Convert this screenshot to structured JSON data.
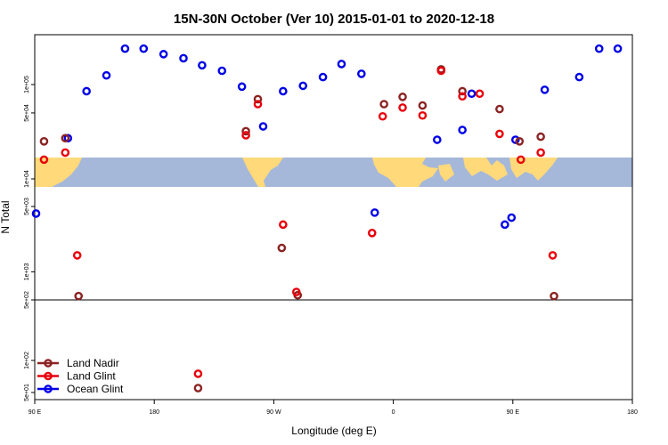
{
  "chart_data": {
    "type": "scatter",
    "title": "15N-30N October (Ver 10)   2015-01-01 to 2020-12-18",
    "xlabel": "Longitude (deg E)",
    "ylabel": "N Total",
    "xlim": [
      90,
      540
    ],
    "x_ticks": [
      {
        "value": 90,
        "label": "90 E"
      },
      {
        "value": 180,
        "label": "180"
      },
      {
        "value": 270,
        "label": "90 W"
      },
      {
        "value": 360,
        "label": "0"
      },
      {
        "value": 450,
        "label": "90 E"
      },
      {
        "value": 540,
        "label": "180"
      }
    ],
    "y_ticks_upper": [
      {
        "value": 100000,
        "label": "1e+05"
      },
      {
        "value": 50000,
        "label": "5e+04"
      },
      {
        "value": 10000,
        "label": "1e+04"
      }
    ],
    "y_ticks_middle": [
      {
        "value": 5000,
        "label": "5e+03"
      },
      {
        "value": 1000,
        "label": "1e+03"
      },
      {
        "value": 500,
        "label": "5e+02"
      }
    ],
    "y_ticks_lower": [
      {
        "value": 100,
        "label": "1e+02"
      },
      {
        "value": 50,
        "label": "5e+01"
      }
    ],
    "legend": {
      "position": "bottom-left",
      "entries": [
        {
          "name": "Land Nadir",
          "color": "#8B2323"
        },
        {
          "name": "Land Glint",
          "color": "#E8000B"
        },
        {
          "name": "Ocean Glint",
          "color": "#0000E6"
        }
      ]
    },
    "series": [
      {
        "name": "Ocean Glint",
        "color": "#0000E6",
        "points": [
          {
            "x": 91,
            "y": 4200
          },
          {
            "x": 115,
            "y": 27000
          },
          {
            "x": 129,
            "y": 85000
          },
          {
            "x": 144,
            "y": 125000
          },
          {
            "x": 158,
            "y": 240000
          },
          {
            "x": 172,
            "y": 240000
          },
          {
            "x": 187,
            "y": 210000
          },
          {
            "x": 202,
            "y": 190000
          },
          {
            "x": 216,
            "y": 160000
          },
          {
            "x": 231,
            "y": 140000
          },
          {
            "x": 246,
            "y": 95000
          },
          {
            "x": 262,
            "y": 36000
          },
          {
            "x": 277,
            "y": 85000
          },
          {
            "x": 292,
            "y": 97000
          },
          {
            "x": 307,
            "y": 120000
          },
          {
            "x": 321,
            "y": 165000
          },
          {
            "x": 336,
            "y": 130000
          },
          {
            "x": 346,
            "y": 4300
          },
          {
            "x": 393,
            "y": 26000
          },
          {
            "x": 412,
            "y": 33000
          },
          {
            "x": 419,
            "y": 80000
          },
          {
            "x": 444,
            "y": 3200
          },
          {
            "x": 449,
            "y": 3800
          },
          {
            "x": 452,
            "y": 26000
          },
          {
            "x": 474,
            "y": 88000
          },
          {
            "x": 500,
            "y": 120000
          },
          {
            "x": 515,
            "y": 240000
          },
          {
            "x": 529,
            "y": 240000
          }
        ]
      },
      {
        "name": "Land Nadir",
        "color": "#8B2323",
        "points": [
          {
            "x": 97,
            "y": 25000
          },
          {
            "x": 113,
            "y": 27000
          },
          {
            "x": 123,
            "y": 550
          },
          {
            "x": 249,
            "y": 32000
          },
          {
            "x": 258,
            "y": 70000
          },
          {
            "x": 276,
            "y": 1800
          },
          {
            "x": 288,
            "y": 410
          },
          {
            "x": 353,
            "y": 62000
          },
          {
            "x": 367,
            "y": 74000
          },
          {
            "x": 382,
            "y": 60000
          },
          {
            "x": 396,
            "y": 145000
          },
          {
            "x": 412,
            "y": 85000
          },
          {
            "x": 440,
            "y": 55000
          },
          {
            "x": 455,
            "y": 25000
          },
          {
            "x": 471,
            "y": 28000
          },
          {
            "x": 481,
            "y": 550
          },
          {
            "x": 213,
            "y": 55
          }
        ]
      },
      {
        "name": "Land Glint",
        "color": "#E8000B",
        "points": [
          {
            "x": 97,
            "y": 16000
          },
          {
            "x": 113,
            "y": 19000
          },
          {
            "x": 122,
            "y": 1500
          },
          {
            "x": 249,
            "y": 29000
          },
          {
            "x": 258,
            "y": 62000
          },
          {
            "x": 277,
            "y": 3200
          },
          {
            "x": 287,
            "y": 440
          },
          {
            "x": 344,
            "y": 2600
          },
          {
            "x": 352,
            "y": 46000
          },
          {
            "x": 367,
            "y": 57000
          },
          {
            "x": 382,
            "y": 47000
          },
          {
            "x": 396,
            "y": 140000
          },
          {
            "x": 412,
            "y": 75000
          },
          {
            "x": 425,
            "y": 80000
          },
          {
            "x": 440,
            "y": 30000
          },
          {
            "x": 456,
            "y": 16000
          },
          {
            "x": 471,
            "y": 19000
          },
          {
            "x": 480,
            "y": 1500
          },
          {
            "x": 213,
            "y": 75
          }
        ]
      }
    ]
  }
}
